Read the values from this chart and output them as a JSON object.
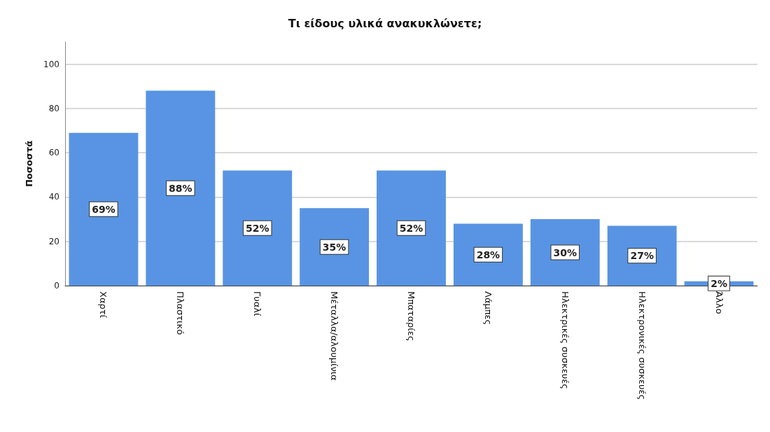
{
  "chart_data": {
    "type": "bar",
    "title": "Τι είδους υλικά ανακυκλώνετε;",
    "ylabel": "Ποσοστά",
    "categories": [
      "Χαρτί",
      "Πλαστικό",
      "Γυαλί",
      "Μέταλλα/αλουμίνια",
      "Μπαταρίες",
      "Λάμπες",
      "Ηλεκτρικές συσκευές",
      "Ηλεκτρονικές συσκευές",
      "Άλλο"
    ],
    "values": [
      69,
      88,
      52,
      35,
      52,
      28,
      30,
      27,
      2
    ],
    "value_labels": [
      "69%",
      "88%",
      "52%",
      "35%",
      "52%",
      "28%",
      "30%",
      "27%",
      "2%"
    ],
    "color": "#5894e3",
    "ylim": [
      0,
      110
    ],
    "yticks": [
      0,
      20,
      40,
      60,
      80,
      100
    ],
    "grid": "y"
  }
}
